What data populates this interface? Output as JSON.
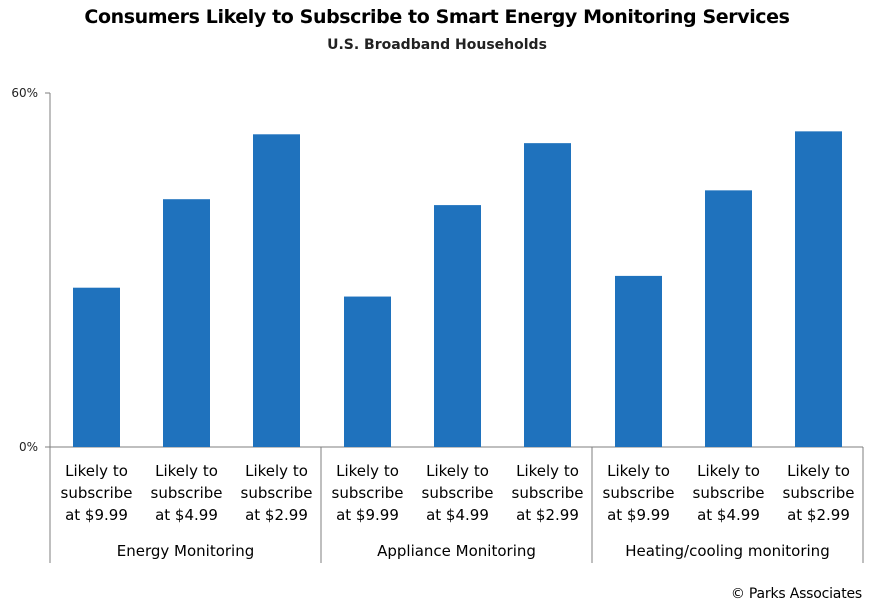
{
  "title": "Consumers Likely to Subscribe to Smart Energy Monitoring Services",
  "subtitle": "U.S. Broadband Households",
  "credit": "© Parks Associates",
  "bar_color": "#1f72bd",
  "chart_data": {
    "type": "bar",
    "title": "Consumers Likely to Subscribe to Smart Energy Monitoring Services",
    "subtitle": "U.S. Broadband Households",
    "y_ticks": [
      "0%",
      "60%"
    ],
    "ylim": [
      0,
      60
    ],
    "y_unit": "%",
    "grid": false,
    "groups": [
      {
        "name": "Energy Monitoring",
        "categories": [
          "Likely to subscribe at $9.99",
          "Likely to subscribe at $4.99",
          "Likely to subscribe at $2.99"
        ],
        "category_lines": [
          [
            "Likely to",
            "subscribe",
            "at $9.99"
          ],
          [
            "Likely to",
            "subscribe",
            "at $4.99"
          ],
          [
            "Likely to",
            "subscribe",
            "at $2.99"
          ]
        ],
        "values": [
          27,
          42,
          53
        ]
      },
      {
        "name": "Appliance Monitoring",
        "categories": [
          "Likely to subscribe at $9.99",
          "Likely to subscribe at $4.99",
          "Likely to subscribe at $2.99"
        ],
        "category_lines": [
          [
            "Likely to",
            "subscribe",
            "at $9.99"
          ],
          [
            "Likely to",
            "subscribe",
            "at $4.99"
          ],
          [
            "Likely to",
            "subscribe",
            "at $2.99"
          ]
        ],
        "values": [
          25.5,
          41,
          51.5
        ]
      },
      {
        "name": "Heating/cooling monitoring",
        "categories": [
          "Likely to subscribe at $9.99",
          "Likely to subscribe at $4.99",
          "Likely to subscribe at $2.99"
        ],
        "category_lines": [
          [
            "Likely to",
            "subscribe",
            "at $9.99"
          ],
          [
            "Likely to",
            "subscribe",
            "at $4.99"
          ],
          [
            "Likely to",
            "subscribe",
            "at $2.99"
          ]
        ],
        "values": [
          29,
          43.5,
          53.5
        ]
      }
    ]
  }
}
